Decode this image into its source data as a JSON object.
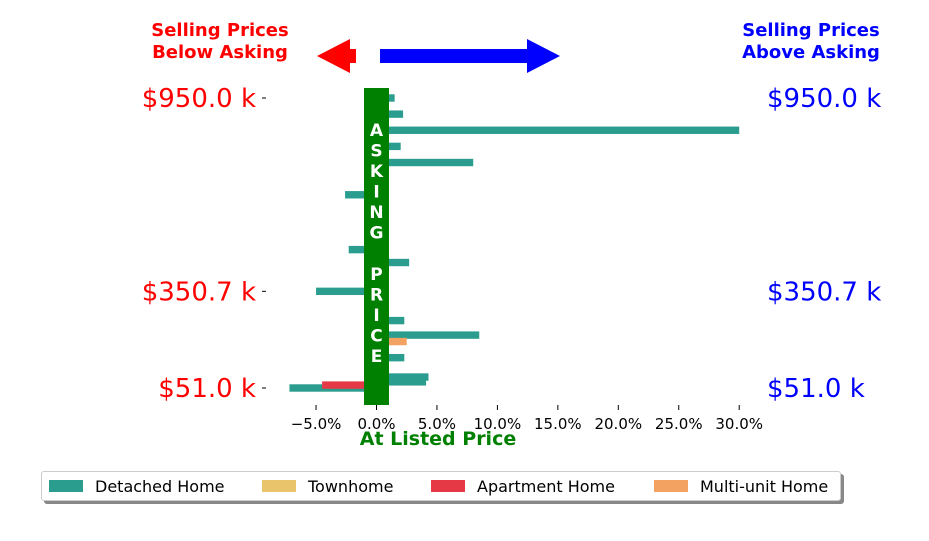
{
  "header": {
    "left_title": "Selling Prices\nBelow Asking",
    "right_title": "Selling Prices\nAbove Asking"
  },
  "colors": {
    "below": "#ff0000",
    "above": "#0000ff",
    "asking": "#008000",
    "detached": "#2a9d8f",
    "townhome": "#e9c46a",
    "apartment": "#e63946",
    "multi": "#f4a261"
  },
  "chart_data": {
    "type": "bar",
    "orientation": "horizontal",
    "xlabel": "At Listed Price",
    "xlim": [
      -7.5,
      31
    ],
    "x_ticks": [
      -5,
      0,
      5,
      10,
      15,
      20,
      25,
      30
    ],
    "x_tick_labels": [
      "−5.0%",
      "0.0%",
      "5.0%",
      "10.0%",
      "15.0%",
      "20.0%",
      "25.0%",
      "30.0%"
    ],
    "y_tick_labels_left": [
      "$950.0 k",
      "$350.7 k",
      "$51.0 k"
    ],
    "y_tick_labels_right": [
      "$950.0 k",
      "$350.7 k",
      "$51.0 k"
    ],
    "asking_band_text": "ASKING PRICE",
    "series": [
      {
        "name": "Detached Home",
        "color_key": "detached",
        "bars": [
          {
            "price_k": 950.0,
            "pct": 1.5
          },
          {
            "price_k": 900.0,
            "pct": 2.2
          },
          {
            "price_k": 850.0,
            "pct": 30.0
          },
          {
            "price_k": 800.0,
            "pct": 2.0
          },
          {
            "price_k": 750.0,
            "pct": 8.0
          },
          {
            "price_k": 700.0,
            "pct": 0.3
          },
          {
            "price_k": 650.0,
            "pct": -2.6
          },
          {
            "price_k": 600.0,
            "pct": 0.4
          },
          {
            "price_k": 560.0,
            "pct": 0.4
          },
          {
            "price_k": 520.0,
            "pct": 0.3
          },
          {
            "price_k": 480.0,
            "pct": -2.3
          },
          {
            "price_k": 440.0,
            "pct": 2.7
          },
          {
            "price_k": 400.0,
            "pct": 0.4
          },
          {
            "price_k": 350.7,
            "pct": -5.0
          },
          {
            "price_k": 305.0,
            "pct": 0.5
          },
          {
            "price_k": 260.0,
            "pct": 2.3
          },
          {
            "price_k": 215.0,
            "pct": 8.5
          },
          {
            "price_k": 175.0,
            "pct": 0.3
          },
          {
            "price_k": 145.0,
            "pct": 2.3
          },
          {
            "price_k": 120.0,
            "pct": 0.3
          },
          {
            "price_k": 100.0,
            "pct": 0.4
          },
          {
            "price_k": 85.0,
            "pct": 4.3
          },
          {
            "price_k": 70.0,
            "pct": 4.1
          },
          {
            "price_k": 51.0,
            "pct": -7.2
          }
        ]
      },
      {
        "name": "Townhome",
        "color_key": "townhome",
        "bars": [
          {
            "price_k": 330.0,
            "pct": 0.4
          },
          {
            "price_k": 285.0,
            "pct": 0.3
          }
        ]
      },
      {
        "name": "Apartment Home",
        "color_key": "apartment",
        "bars": [
          {
            "price_k": 60.0,
            "pct": -4.5
          }
        ]
      },
      {
        "name": "Multi-unit Home",
        "color_key": "multi",
        "bars": [
          {
            "price_k": 195.0,
            "pct": 2.5
          }
        ]
      }
    ],
    "legend_position": "bottom"
  },
  "legend": [
    {
      "label": "Detached Home",
      "color_key": "detached"
    },
    {
      "label": "Townhome",
      "color_key": "townhome"
    },
    {
      "label": "Apartment Home",
      "color_key": "apartment"
    },
    {
      "label": "Multi-unit Home",
      "color_key": "multi"
    }
  ]
}
